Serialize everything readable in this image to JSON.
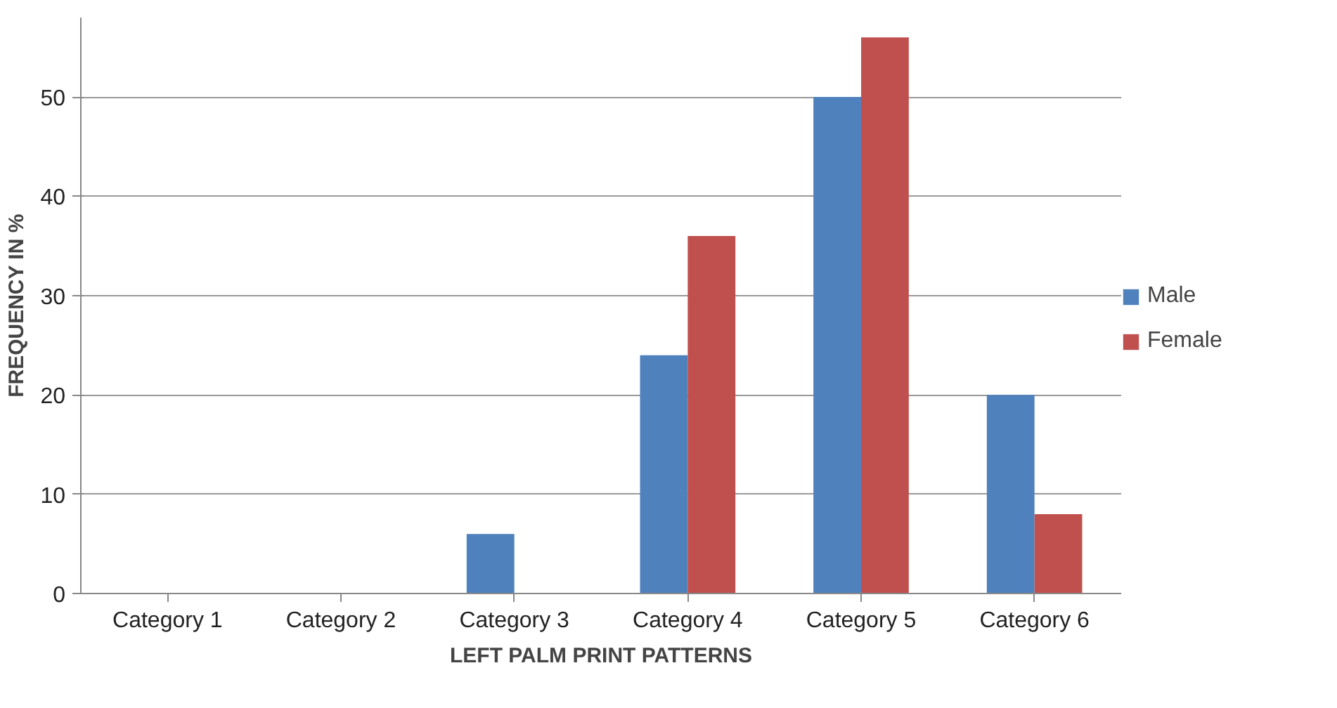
{
  "chart_data": {
    "type": "bar",
    "xlabel": "LEFT PALM PRINT PATTERNS",
    "ylabel": "FREQUENCY IN %",
    "categories": [
      "Category 1",
      "Category 2",
      "Category 3",
      "Category 4",
      "Category 5",
      "Category 6"
    ],
    "series": [
      {
        "name": "Male",
        "color": "#4f81bd",
        "values": [
          0,
          0,
          6,
          24,
          50,
          20
        ]
      },
      {
        "name": "Female",
        "color": "#c0504d",
        "values": [
          0,
          0,
          0,
          36,
          56,
          8
        ]
      }
    ],
    "ylim": [
      0,
      58
    ],
    "yticks": [
      0,
      10,
      20,
      30,
      40,
      50
    ],
    "grid": "y",
    "legend": "right"
  }
}
